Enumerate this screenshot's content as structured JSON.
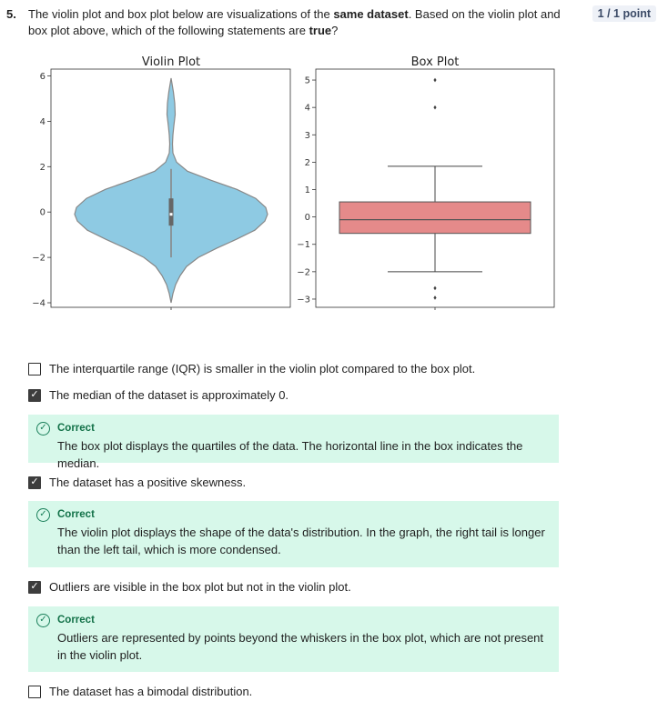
{
  "question": {
    "number": "5.",
    "text_before": "The violin plot and box plot below are visualizations of the ",
    "bold1": "same dataset",
    "text_middle": ". Based on the violin plot and box plot above, which of the following statements are ",
    "bold2": "true",
    "text_after": "?",
    "points": "1 / 1 point"
  },
  "chart_data": [
    {
      "type": "violin",
      "title": "Violin Plot",
      "ylim": [
        -4.2,
        6.3
      ],
      "yticks": [
        "6",
        "4",
        "2",
        "0",
        "−2",
        "−4"
      ],
      "ytick_values": [
        6,
        4,
        2,
        0,
        -2,
        -4
      ],
      "min": -4.0,
      "max": 5.9,
      "whisker_low": -2.0,
      "whisker_high": 1.9,
      "q1": -0.6,
      "median": -0.1,
      "q3": 0.6,
      "color": "#8ecae3"
    },
    {
      "type": "box",
      "title": "Box Plot",
      "ylim": [
        -3.3,
        5.4
      ],
      "yticks": [
        "5",
        "4",
        "3",
        "2",
        "1",
        "0",
        "−1",
        "−2",
        "−3"
      ],
      "ytick_values": [
        5,
        4,
        3,
        2,
        1,
        0,
        -1,
        -2,
        -3
      ],
      "whisker_low": -2.0,
      "q1": -0.6,
      "median": -0.1,
      "q3": 0.55,
      "whisker_high": 1.85,
      "outliers": [
        5.0,
        4.0,
        -2.6,
        -2.95
      ],
      "color": "#e58a8a"
    }
  ],
  "options": [
    {
      "label": "The interquartile range (IQR) is smaller in the violin plot compared to the box plot.",
      "checked": false
    },
    {
      "label": "The median of the dataset is approximately 0.",
      "checked": true,
      "feedback_title": "Correct",
      "feedback": "The box plot displays the quartiles of the data. The horizontal line in the box indicates the median."
    },
    {
      "label": "The dataset has a positive skewness.",
      "checked": true,
      "feedback_title": "Correct",
      "feedback": "The violin plot displays the shape of the data's distribution. In the graph, the right tail is longer than the left tail, which is more condensed."
    },
    {
      "label": "Outliers are visible in the box plot but not in the violin plot.",
      "checked": true,
      "feedback_title": "Correct",
      "feedback": "Outliers are represented by points beyond the whiskers in the box plot, which are not present in the violin plot."
    },
    {
      "label": "The dataset has a bimodal distribution.",
      "checked": false
    }
  ],
  "icons": {
    "check": "checkmark-icon",
    "correct": "check-circle-icon"
  }
}
